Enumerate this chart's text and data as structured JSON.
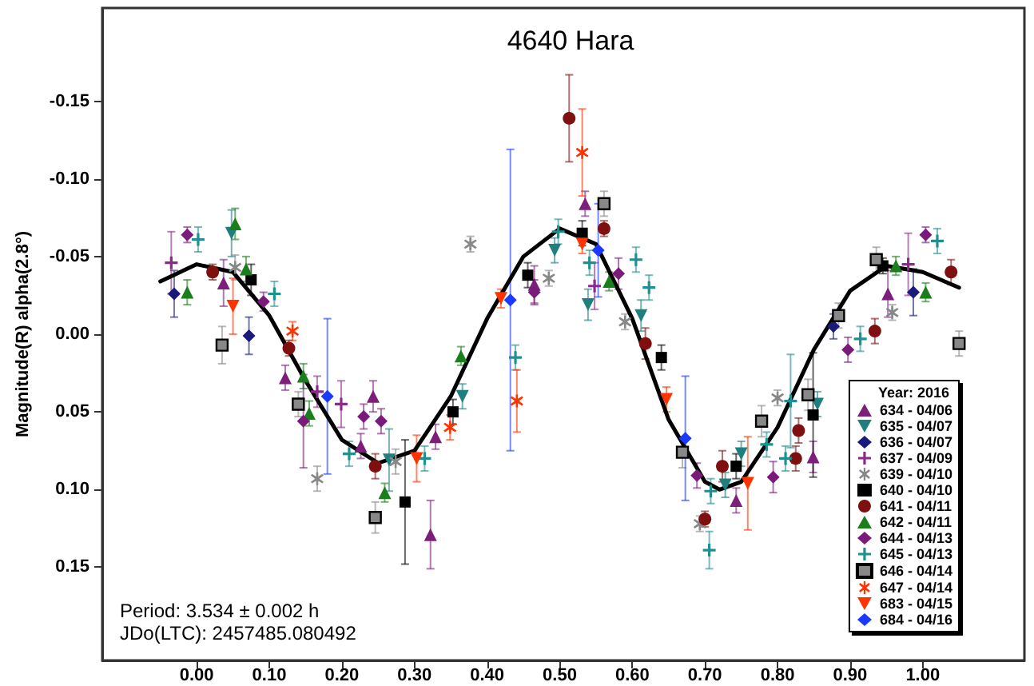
{
  "chart_data": {
    "type": "scatter",
    "title": "4640 Hara",
    "ylabel": "Magnitude(R) alpha(2.8°)",
    "legend_title": "Year: 2016",
    "legend": "bottom right",
    "grid": false,
    "annotations": [
      "Period: 3.534 ± 0.002 h",
      "JDo(LTC): 2457485.080492"
    ],
    "xlim": [
      -0.13,
      1.14
    ],
    "ylim": [
      0.21,
      -0.21
    ],
    "xticks": [
      {
        "value": 0,
        "label": "0.00"
      },
      {
        "value": 0.1,
        "label": "0.10"
      },
      {
        "value": 0.2,
        "label": "0.20"
      },
      {
        "value": 0.3,
        "label": "0.30"
      },
      {
        "value": 0.4,
        "label": "0.40"
      },
      {
        "value": 0.5,
        "label": "0.50"
      },
      {
        "value": 0.6,
        "label": "0.60"
      },
      {
        "value": 0.7,
        "label": "0.70"
      },
      {
        "value": 0.8,
        "label": "0.80"
      },
      {
        "value": 0.9,
        "label": "0.90"
      },
      {
        "value": 1,
        "label": "1.00"
      }
    ],
    "yticks": [
      {
        "value": -0.15,
        "label": "-0.15"
      },
      {
        "value": -0.1,
        "label": "-0.10"
      },
      {
        "value": -0.05,
        "label": "-0.05"
      },
      {
        "value": 0,
        "label": "0.00"
      },
      {
        "value": 0.05,
        "label": "0.05"
      },
      {
        "value": 0.1,
        "label": "0.10"
      },
      {
        "value": 0.15,
        "label": "0.15"
      }
    ],
    "series": [
      {
        "name": "634 - 04/06",
        "color": "#7b1f7b",
        "marker": "triangle",
        "x": [
          0.037,
          0.122,
          0.226,
          0.243,
          0.322,
          0.329,
          0.465,
          0.535,
          0.743,
          0.849,
          0.952
        ],
        "values": [
          -0.033,
          0.028,
          0.072,
          0.04,
          0.129,
          0.066,
          -0.032,
          -0.084,
          0.107,
          0.079,
          -0.026
        ],
        "errors": [
          0.015,
          0.008,
          0.008,
          0.01,
          0.022,
          0.008,
          0.012,
          0.008,
          0.008,
          0.01,
          0.015
        ]
      },
      {
        "name": "635 - 04/07",
        "color": "#1f7f7f",
        "marker": "triangle-down",
        "x": [
          0.048,
          0.265,
          0.366,
          0.493,
          0.539,
          0.612,
          0.728,
          0.75,
          0.855
        ],
        "values": [
          -0.065,
          0.081,
          0.04,
          -0.054,
          -0.019,
          -0.012,
          0.097,
          0.077,
          0.045
        ],
        "errors": [
          0.015,
          0.02,
          0.008,
          0.008,
          0.01,
          0.01,
          0.008,
          0.008,
          0.008
        ]
      },
      {
        "name": "636 - 04/07",
        "color": "#1a1a7a",
        "marker": "diamond",
        "x": [
          -0.031,
          0.072,
          0.425,
          0.877,
          0.987
        ],
        "values": [
          -0.026,
          0.001,
          null,
          -0.005,
          -0.027
        ],
        "errors": [
          0.015,
          0.012,
          null,
          0.008,
          0.015
        ]
      },
      {
        "name": "637 - 04/09",
        "color": "#8b2a8b",
        "marker": "plus",
        "x": [
          -0.035,
          0.166,
          0.199,
          0.548,
          0.98
        ],
        "values": [
          -0.046,
          0.037,
          0.045,
          -0.031,
          -0.045
        ],
        "errors": [
          0.02,
          0.01,
          0.015,
          0.015,
          0.02
        ]
      },
      {
        "name": "639 - 04/10",
        "color": "#888888",
        "marker": "asterisk",
        "x": [
          0.053,
          0.166,
          0.274,
          0.377,
          0.485,
          0.59,
          0.693,
          0.8,
          0.958
        ],
        "values": [
          -0.043,
          0.093,
          0.082,
          -0.058,
          -0.036,
          -0.008,
          0.122,
          0.041,
          -0.014
        ],
        "errors": [
          0.008,
          0.008,
          0.008,
          0.005,
          0.005,
          0.005,
          0.005,
          0.005,
          0.005
        ]
      },
      {
        "name": "640 - 04/10",
        "color": "#000000",
        "marker": "square",
        "x": [
          0.075,
          0.287,
          0.353,
          0.456,
          0.531,
          0.64,
          0.743,
          0.849,
          0.945
        ],
        "values": [
          -0.035,
          0.108,
          0.05,
          -0.038,
          -0.065,
          0.015,
          0.085,
          0.052,
          -0.044
        ],
        "errors": [
          0.01,
          0.04,
          0.008,
          0.008,
          0.008,
          0.008,
          0.008,
          0.04,
          0.005
        ]
      },
      {
        "name": "641 - 04/11",
        "color": "#7f1010",
        "marker": "circle",
        "x": [
          0.022,
          0.127,
          0.246,
          0.513,
          0.561,
          0.618,
          0.7,
          0.724,
          0.825,
          0.829,
          0.934,
          1.039
        ],
        "values": [
          -0.04,
          0.009,
          0.085,
          -0.139,
          -0.068,
          0.006,
          0.119,
          0.085,
          0.08,
          0.062,
          -0.002,
          -0.04
        ],
        "errors": [
          0.005,
          0.005,
          0.008,
          0.028,
          0.005,
          0.01,
          0.005,
          0.01,
          0.008,
          0.008,
          0.008,
          0.008
        ]
      },
      {
        "name": "642 - 04/11",
        "color": "#1a7f1a",
        "marker": "triangle",
        "x": [
          -0.013,
          0.053,
          0.068,
          0.147,
          0.155,
          0.259,
          0.364,
          0.568,
          0.963,
          1.004
        ],
        "values": [
          -0.027,
          -0.071,
          -0.042,
          0.027,
          0.051,
          0.102,
          0.014,
          -0.034,
          -0.044,
          -0.027
        ],
        "errors": [
          0.008,
          0.01,
          0.008,
          0.008,
          0.008,
          0.006,
          0.006,
          0.006,
          0.006,
          0.006
        ]
      },
      {
        "name": "644 - 04/13",
        "color": "#7a1a7a",
        "marker": "diamond",
        "x": [
          -0.013,
          0.092,
          0.147,
          0.23,
          0.254,
          0.465,
          0.581,
          0.689,
          0.794,
          0.897,
          1.004
        ],
        "values": [
          -0.064,
          -0.021,
          0.056,
          0.053,
          0.056,
          -0.027,
          -0.039,
          0.091,
          0.092,
          0.01,
          -0.064
        ],
        "errors": [
          0.005,
          0.006,
          0.03,
          0.008,
          0.008,
          0.008,
          0.01,
          0.008,
          0.01,
          0.008,
          0.005
        ]
      },
      {
        "name": "645 - 04/13",
        "color": "#1f8f8f",
        "marker": "plus",
        "x": [
          0.002,
          0.107,
          0.21,
          0.314,
          0.439,
          0.498,
          0.541,
          0.605,
          0.623,
          0.706,
          0.708,
          0.785,
          0.811,
          0.818,
          0.914,
          1.02
        ],
        "values": [
          -0.061,
          -0.026,
          0.077,
          0.08,
          0.015,
          -0.066,
          -0.046,
          -0.048,
          -0.03,
          0.139,
          0.101,
          0.071,
          0.08,
          0.043,
          0.003,
          -0.06
        ],
        "errors": [
          0.008,
          0.008,
          0.008,
          0.008,
          0.008,
          0.008,
          0.008,
          0.008,
          0.008,
          0.012,
          0.008,
          0.008,
          0.008,
          0.03,
          0.008,
          0.008
        ]
      },
      {
        "name": "646 - 04/14",
        "color": "#888888",
        "marker": "square",
        "x": [
          0.035,
          0.14,
          0.246,
          0.561,
          0.669,
          0.778,
          0.842,
          0.884,
          0.936,
          1.05
        ],
        "values": [
          0.007,
          0.045,
          0.118,
          -0.084,
          0.076,
          0.056,
          0.039,
          -0.012,
          -0.048,
          0.006
        ],
        "errors": [
          0.012,
          0.008,
          0.01,
          0.008,
          0.01,
          0.01,
          0.01,
          0.008,
          0.008,
          0.008
        ]
      },
      {
        "name": "647 - 04/14",
        "color": "#ff3300",
        "marker": "asterisk",
        "x": [
          0.132,
          0.349,
          0.441,
          0.531
        ],
        "values": [
          -0.002,
          0.06,
          0.043,
          -0.117
        ],
        "errors": [
          0.006,
          0.008,
          0.02,
          0.028
        ]
      },
      {
        "name": "683 - 04/15",
        "color": "#ff3300",
        "marker": "triangle-down",
        "x": [
          0.05,
          0.182,
          0.303,
          0.419,
          0.531,
          0.647,
          0.759
        ],
        "values": [
          -0.018,
          null,
          0.08,
          -0.023,
          -0.058,
          0.042,
          0.096
        ],
        "errors": [
          0.018,
          null,
          0.015,
          0.006,
          0.006,
          0.008,
          0.03
        ]
      },
      {
        "name": "684 - 04/16",
        "color": "#1a3aff",
        "marker": "diamond",
        "x": [
          0.18,
          0.432,
          0.553,
          0.673
        ],
        "values": [
          0.04,
          -0.022,
          -0.054,
          0.067
        ],
        "errors": [
          0.05,
          0.097,
          0.03,
          0.04
        ]
      },
      {
        "type": "line",
        "color": "#000000",
        "marker": "none",
        "x": [
          -0.05,
          0,
          0.05,
          0.1,
          0.15,
          0.2,
          0.25,
          0.3,
          0.35,
          0.4,
          0.45,
          0.5,
          0.55,
          0.6,
          0.65,
          0.7,
          0.72,
          0.75,
          0.8,
          0.85,
          0.9,
          0.95,
          1,
          1.05
        ],
        "values": [
          -0.034,
          -0.045,
          -0.04,
          -0.012,
          0.03,
          0.068,
          0.083,
          0.075,
          0.04,
          -0.01,
          -0.05,
          -0.068,
          -0.058,
          -0.01,
          0.055,
          0.095,
          0.1,
          0.095,
          0.06,
          0.01,
          -0.028,
          -0.044,
          -0.04,
          -0.03
        ]
      }
    ]
  }
}
